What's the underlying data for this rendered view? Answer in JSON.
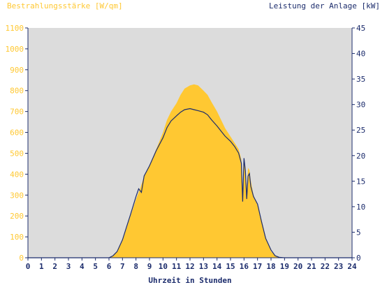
{
  "chart_data": {
    "type": "area",
    "left_axis_title": "Bestrahlungsstärke [W/qm]",
    "right_axis_title": "Leistung der Anlage [kW]",
    "xlabel": "Uhrzeit in Stunden",
    "xlim": [
      0,
      24
    ],
    "x_ticks": [
      "0",
      "1",
      "2",
      "3",
      "4",
      "5",
      "6",
      "7",
      "8",
      "9",
      "10",
      "11",
      "12",
      "13",
      "14",
      "15",
      "16",
      "17",
      "18",
      "19",
      "20",
      "21",
      "22",
      "23",
      "24"
    ],
    "y_left_lim": [
      0,
      1100
    ],
    "y_left_ticks": [
      "0",
      "100",
      "200",
      "300",
      "400",
      "500",
      "600",
      "700",
      "800",
      "900",
      "1000",
      "1100"
    ],
    "y_right_lim": [
      0,
      45
    ],
    "y_right_ticks": [
      "0",
      "5",
      "10",
      "15",
      "20",
      "25",
      "30",
      "35",
      "40",
      "45"
    ],
    "grid": false,
    "colors": {
      "irradiance": "#ffc832",
      "power": "#1c2c6c",
      "left_axis_text": "#ffc832",
      "right_axis_text": "#1c2c6c",
      "plot_bg": "#dcdcdc"
    },
    "series": [
      {
        "name": "Bestrahlungsstärke [W/qm]",
        "axis": "left",
        "kind": "area",
        "x": [
          0,
          6.0,
          6.3,
          6.6,
          7.0,
          7.3,
          7.6,
          8.0,
          8.3,
          8.6,
          9.0,
          9.5,
          10.0,
          10.3,
          10.6,
          11.0,
          11.3,
          11.6,
          12.0,
          12.3,
          12.6,
          13.0,
          13.3,
          13.6,
          14.0,
          14.3,
          14.6,
          15.0,
          15.3,
          15.6,
          15.8,
          15.9,
          16.0,
          16.1,
          16.2,
          16.3,
          16.4,
          16.5,
          16.7,
          17.0,
          17.3,
          17.6,
          18.0,
          18.3,
          18.6,
          19.0,
          24
        ],
        "y": [
          0,
          0,
          10,
          30,
          80,
          140,
          200,
          280,
          330,
          390,
          440,
          520,
          600,
          660,
          700,
          740,
          780,
          810,
          825,
          830,
          825,
          800,
          780,
          745,
          700,
          660,
          620,
          580,
          550,
          520,
          470,
          300,
          460,
          420,
          330,
          430,
          420,
          370,
          300,
          250,
          180,
          100,
          30,
          10,
          3,
          0,
          0
        ]
      },
      {
        "name": "Leistung der Anlage [kW]",
        "axis": "right",
        "kind": "line",
        "x": [
          0,
          6.0,
          6.3,
          6.6,
          7.0,
          7.3,
          7.6,
          8.0,
          8.2,
          8.4,
          8.6,
          9.0,
          9.5,
          10.0,
          10.3,
          10.6,
          11.0,
          11.3,
          11.6,
          12.0,
          12.3,
          12.6,
          13.0,
          13.3,
          13.6,
          14.0,
          14.3,
          14.6,
          15.0,
          15.3,
          15.6,
          15.8,
          15.9,
          16.0,
          16.1,
          16.2,
          16.3,
          16.4,
          16.5,
          16.7,
          17.0,
          17.3,
          17.6,
          18.0,
          18.3,
          18.6,
          19.0,
          24
        ],
        "y": [
          0,
          0,
          0.4,
          1.2,
          3.5,
          6.0,
          8.5,
          12.0,
          13.5,
          12.8,
          16.0,
          18.0,
          21.0,
          23.5,
          25.5,
          26.8,
          27.8,
          28.5,
          29.0,
          29.2,
          29.0,
          28.8,
          28.5,
          28.0,
          27.0,
          25.8,
          24.8,
          23.8,
          22.8,
          21.8,
          20.5,
          18.5,
          11.0,
          19.5,
          17.0,
          11.5,
          16.0,
          16.5,
          14.0,
          12.0,
          10.5,
          7.0,
          3.8,
          1.5,
          0.4,
          0.1,
          0,
          0
        ]
      }
    ]
  }
}
